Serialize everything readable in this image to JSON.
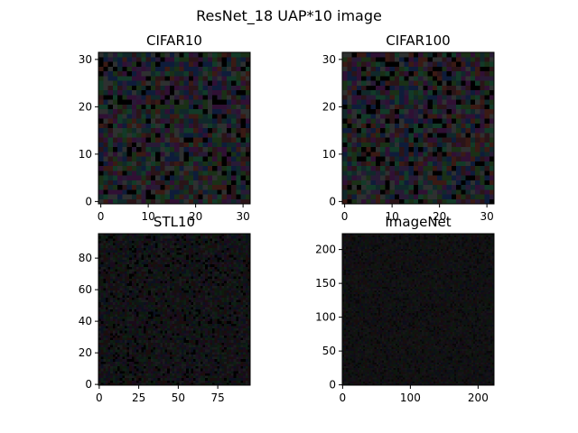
{
  "figure": {
    "title": "ResNet_18 UAP*10 image"
  },
  "chart_data": [
    {
      "type": "heatmap",
      "title": "CIFAR10",
      "image_size": 32,
      "xlim": [
        -0.5,
        31.5
      ],
      "ylim": [
        31.5,
        -0.5
      ],
      "xticks": [
        0,
        10,
        20,
        30
      ],
      "yticks": [
        0,
        10,
        20,
        30
      ],
      "colors": [
        "#000000",
        "#2a1418",
        "#10282a",
        "#281a36",
        "#1a3016",
        "#3a1a14",
        "#0e1c3a",
        "#2e3030",
        "#123a28",
        "#301034"
      ]
    },
    {
      "type": "heatmap",
      "title": "CIFAR100",
      "image_size": 32,
      "xlim": [
        -0.5,
        31.5
      ],
      "ylim": [
        31.5,
        -0.5
      ],
      "xticks": [
        0,
        10,
        20,
        30
      ],
      "yticks": [
        0,
        10,
        20,
        30
      ],
      "colors": [
        "#000000",
        "#2a1418",
        "#10282a",
        "#281a36",
        "#1a3016",
        "#3a1a14",
        "#0e1c3a",
        "#2e3030",
        "#123a28",
        "#301034"
      ]
    },
    {
      "type": "heatmap",
      "title": "STL10",
      "image_size": 96,
      "xlim": [
        -0.5,
        95.5
      ],
      "ylim": [
        95.5,
        -0.5
      ],
      "xticks": [
        0,
        25,
        50,
        75
      ],
      "yticks": [
        0,
        20,
        40,
        60,
        80
      ],
      "colors": [
        "#000000",
        "#141010",
        "#0c1616",
        "#1a1020",
        "#0e1a0c",
        "#1c0c0c",
        "#0a1020",
        "#1a1c1c",
        "#0c2014",
        "#1a0a1c"
      ]
    },
    {
      "type": "heatmap",
      "title": "ImageNet",
      "image_size": 224,
      "xlim": [
        -0.5,
        223.5
      ],
      "ylim": [
        223.5,
        -0.5
      ],
      "xticks": [
        0,
        100,
        200
      ],
      "yticks": [
        0,
        50,
        100,
        150,
        200
      ],
      "colors": [
        "#080808",
        "#141010",
        "#0c1414",
        "#16101a",
        "#0e160c",
        "#180c0c",
        "#0a0e1a",
        "#161616",
        "#0c180e",
        "#140a16"
      ]
    }
  ]
}
